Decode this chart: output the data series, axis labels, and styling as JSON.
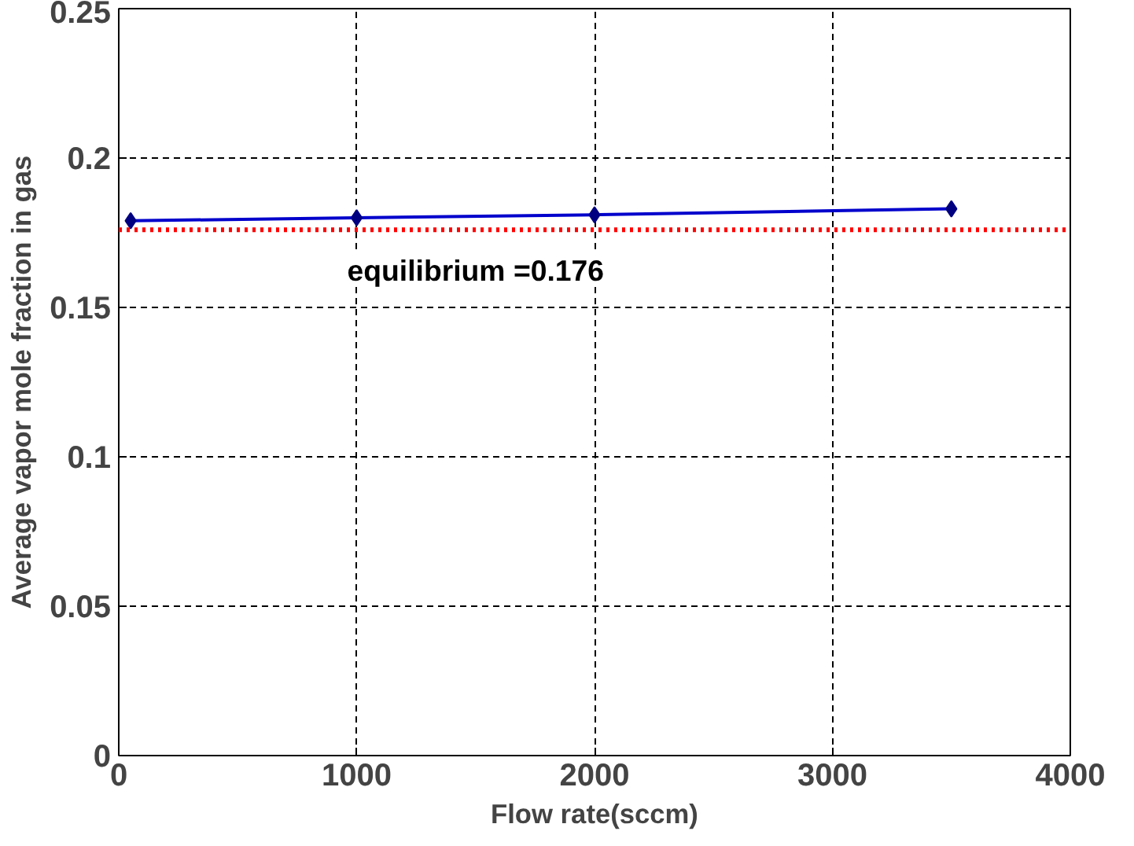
{
  "chart_data": {
    "type": "line",
    "xlabel": "Flow rate(sccm)",
    "ylabel": "Average vapor mole fraction in gas",
    "x": [
      50,
      1000,
      2000,
      3500
    ],
    "series": [
      {
        "color": "#0000cc",
        "values": [
          0.179,
          0.18,
          0.181,
          0.183
        ]
      }
    ],
    "marker": "diamond",
    "line_style": "solid",
    "xlim": [
      0,
      4000
    ],
    "xticks": [
      0,
      1000,
      2000,
      3000,
      4000
    ],
    "ylim": [
      0,
      0.25
    ],
    "yticks": [
      0,
      0.05,
      0.1,
      0.15,
      0.2,
      0.25
    ],
    "grid": true,
    "ref_lines": [
      {
        "axis": "y",
        "value": 0.176,
        "label": "equilibrium =0.176",
        "color": "#ff0000",
        "line_style": "dotted"
      }
    ]
  }
}
